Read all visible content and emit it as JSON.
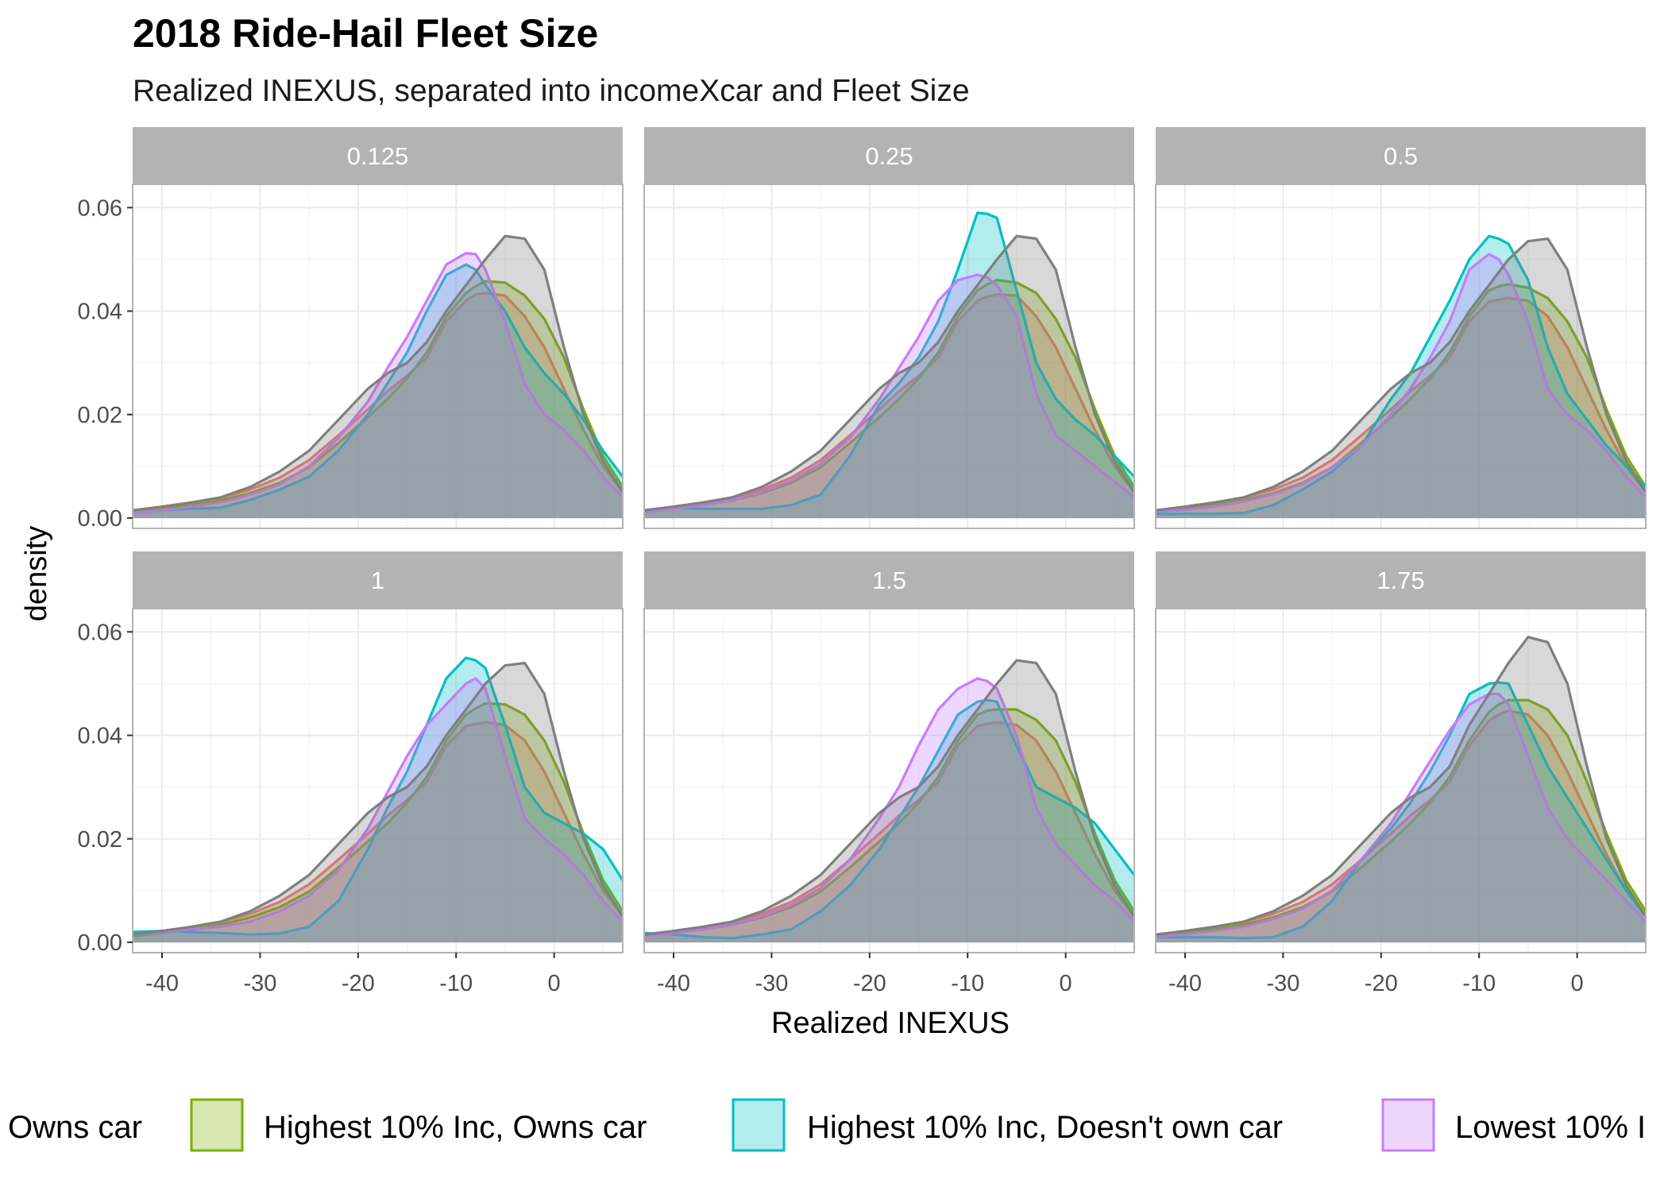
{
  "chart_data": {
    "type": "area",
    "title": "2018 Ride-Hail Fleet Size",
    "subtitle": "Realized INEXUS, separated into incomeXcar and Fleet Size",
    "xlabel": "Realized INEXUS",
    "ylabel": "density",
    "xlim": [
      -43,
      7
    ],
    "ylim": [
      -0.002,
      0.0645
    ],
    "x_ticks": [
      -40,
      -30,
      -20,
      -10,
      0
    ],
    "x_tick_labels": [
      "-40",
      "-30",
      "-20",
      "-10",
      "0"
    ],
    "y_ticks": [
      0.0,
      0.02,
      0.04,
      0.06
    ],
    "y_tick_labels": [
      "0.00",
      "0.02",
      "0.04",
      "0.06"
    ],
    "grid": true,
    "legend_position": "bottom",
    "legend_visible_labels": [
      "Owns car",
      "Highest 10% Inc, Owns car",
      "Highest 10% Inc, Doesn't own car",
      "Lowest 10% I"
    ],
    "x": [
      -43,
      -40,
      -37,
      -34,
      -31,
      -28,
      -25,
      -22,
      -19,
      -17,
      -15,
      -13,
      -11,
      -9,
      -8,
      -7,
      -5,
      -3,
      -1,
      1,
      3,
      5,
      7
    ],
    "series": [
      {
        "name": "Owns car",
        "color": "#f8766d",
        "panels": [
          [
            0.0013,
            0.0022,
            0.003,
            0.0039,
            0.0055,
            0.0078,
            0.0112,
            0.016,
            0.021,
            0.0245,
            0.0275,
            0.031,
            0.038,
            0.042,
            0.0432,
            0.0435,
            0.043,
            0.039,
            0.033,
            0.025,
            0.017,
            0.01,
            0.005
          ],
          [
            0.0013,
            0.0022,
            0.003,
            0.0039,
            0.0055,
            0.0078,
            0.0112,
            0.016,
            0.021,
            0.0245,
            0.0275,
            0.031,
            0.038,
            0.042,
            0.0428,
            0.0432,
            0.043,
            0.039,
            0.033,
            0.025,
            0.017,
            0.01,
            0.005
          ],
          [
            0.0013,
            0.0022,
            0.003,
            0.0039,
            0.0055,
            0.0078,
            0.0112,
            0.016,
            0.021,
            0.0245,
            0.0275,
            0.031,
            0.038,
            0.0418,
            0.0422,
            0.0425,
            0.042,
            0.039,
            0.033,
            0.025,
            0.017,
            0.01,
            0.005
          ],
          [
            0.0013,
            0.0022,
            0.003,
            0.0039,
            0.0055,
            0.0078,
            0.0112,
            0.016,
            0.021,
            0.0245,
            0.0275,
            0.031,
            0.038,
            0.0418,
            0.0422,
            0.0425,
            0.042,
            0.039,
            0.033,
            0.025,
            0.017,
            0.01,
            0.005
          ],
          [
            0.0013,
            0.0022,
            0.003,
            0.0039,
            0.0055,
            0.0078,
            0.0112,
            0.016,
            0.021,
            0.0245,
            0.0275,
            0.031,
            0.038,
            0.0418,
            0.0422,
            0.0425,
            0.042,
            0.039,
            0.033,
            0.025,
            0.017,
            0.01,
            0.005
          ],
          [
            0.0013,
            0.0022,
            0.003,
            0.0039,
            0.0055,
            0.0078,
            0.0112,
            0.016,
            0.021,
            0.0245,
            0.0275,
            0.031,
            0.038,
            0.0428,
            0.044,
            0.0448,
            0.044,
            0.04,
            0.033,
            0.025,
            0.017,
            0.01,
            0.005
          ]
        ]
      },
      {
        "name": "Highest 10% Inc, Owns car",
        "color": "#7cae00",
        "panels": [
          [
            0.0012,
            0.0018,
            0.0025,
            0.0034,
            0.0048,
            0.0068,
            0.0098,
            0.0145,
            0.0195,
            0.023,
            0.027,
            0.032,
            0.039,
            0.0435,
            0.0448,
            0.0458,
            0.0455,
            0.043,
            0.0385,
            0.031,
            0.021,
            0.012,
            0.006
          ],
          [
            0.0012,
            0.0018,
            0.0025,
            0.0034,
            0.0048,
            0.0068,
            0.0098,
            0.0145,
            0.0195,
            0.023,
            0.027,
            0.032,
            0.039,
            0.044,
            0.0452,
            0.046,
            0.0455,
            0.0435,
            0.0385,
            0.031,
            0.021,
            0.012,
            0.006
          ],
          [
            0.0012,
            0.0018,
            0.0025,
            0.0034,
            0.0048,
            0.0068,
            0.0098,
            0.0145,
            0.0195,
            0.023,
            0.027,
            0.032,
            0.039,
            0.044,
            0.0448,
            0.0452,
            0.0445,
            0.0425,
            0.038,
            0.031,
            0.021,
            0.012,
            0.006
          ],
          [
            0.0012,
            0.0018,
            0.0025,
            0.0034,
            0.0048,
            0.0068,
            0.0098,
            0.0145,
            0.0195,
            0.023,
            0.027,
            0.032,
            0.039,
            0.044,
            0.0452,
            0.0462,
            0.046,
            0.044,
            0.039,
            0.031,
            0.021,
            0.012,
            0.006
          ],
          [
            0.0012,
            0.0018,
            0.0025,
            0.0034,
            0.0048,
            0.0068,
            0.0098,
            0.0145,
            0.0195,
            0.023,
            0.027,
            0.032,
            0.039,
            0.044,
            0.0448,
            0.045,
            0.045,
            0.043,
            0.039,
            0.031,
            0.021,
            0.012,
            0.006
          ],
          [
            0.0012,
            0.0018,
            0.0025,
            0.0034,
            0.0048,
            0.0068,
            0.0098,
            0.0145,
            0.0195,
            0.023,
            0.027,
            0.032,
            0.039,
            0.0445,
            0.046,
            0.0468,
            0.0468,
            0.045,
            0.04,
            0.031,
            0.021,
            0.012,
            0.006
          ]
        ]
      },
      {
        "name": "Highest 10% Inc, Doesn't own car",
        "color": "#00bfc4",
        "panels": [
          [
            0.001,
            0.0015,
            0.0018,
            0.002,
            0.0035,
            0.0055,
            0.008,
            0.013,
            0.02,
            0.026,
            0.032,
            0.04,
            0.047,
            0.049,
            0.048,
            0.045,
            0.04,
            0.033,
            0.028,
            0.024,
            0.019,
            0.013,
            0.008
          ],
          [
            0.0015,
            0.002,
            0.0018,
            0.0018,
            0.0018,
            0.0025,
            0.0045,
            0.012,
            0.022,
            0.026,
            0.031,
            0.038,
            0.048,
            0.059,
            0.0588,
            0.058,
            0.044,
            0.03,
            0.023,
            0.019,
            0.016,
            0.012,
            0.008
          ],
          [
            0.0008,
            0.0008,
            0.0008,
            0.001,
            0.0025,
            0.0055,
            0.009,
            0.014,
            0.023,
            0.028,
            0.035,
            0.042,
            0.05,
            0.0545,
            0.054,
            0.053,
            0.046,
            0.033,
            0.024,
            0.019,
            0.014,
            0.01,
            0.006
          ],
          [
            0.002,
            0.0022,
            0.002,
            0.0018,
            0.0015,
            0.0017,
            0.003,
            0.008,
            0.018,
            0.026,
            0.033,
            0.042,
            0.051,
            0.055,
            0.0545,
            0.053,
            0.042,
            0.03,
            0.025,
            0.023,
            0.021,
            0.018,
            0.012
          ],
          [
            0.0018,
            0.0015,
            0.001,
            0.0008,
            0.0015,
            0.0025,
            0.006,
            0.011,
            0.018,
            0.024,
            0.03,
            0.037,
            0.044,
            0.0465,
            0.0468,
            0.0465,
            0.038,
            0.03,
            0.028,
            0.026,
            0.023,
            0.018,
            0.013
          ],
          [
            0.001,
            0.001,
            0.001,
            0.0008,
            0.001,
            0.003,
            0.008,
            0.016,
            0.022,
            0.027,
            0.033,
            0.04,
            0.048,
            0.05,
            0.0502,
            0.05,
            0.042,
            0.034,
            0.028,
            0.022,
            0.016,
            0.01,
            0.005
          ]
        ]
      },
      {
        "name": "Lowest 10% I",
        "color": "#c77cff",
        "panels": [
          [
            0.001,
            0.0015,
            0.0022,
            0.003,
            0.0045,
            0.0065,
            0.01,
            0.0155,
            0.0225,
            0.029,
            0.035,
            0.042,
            0.049,
            0.0512,
            0.051,
            0.048,
            0.038,
            0.026,
            0.02,
            0.017,
            0.013,
            0.008,
            0.004
          ],
          [
            0.0012,
            0.0018,
            0.0025,
            0.0035,
            0.005,
            0.0072,
            0.0105,
            0.0155,
            0.023,
            0.029,
            0.035,
            0.042,
            0.046,
            0.047,
            0.0465,
            0.045,
            0.039,
            0.024,
            0.016,
            0.013,
            0.01,
            0.007,
            0.004
          ],
          [
            0.0012,
            0.0016,
            0.0022,
            0.0032,
            0.0046,
            0.0066,
            0.0098,
            0.014,
            0.02,
            0.025,
            0.031,
            0.038,
            0.048,
            0.051,
            0.05,
            0.047,
            0.038,
            0.025,
            0.02,
            0.017,
            0.013,
            0.008,
            0.004
          ],
          [
            0.0015,
            0.002,
            0.0025,
            0.003,
            0.004,
            0.006,
            0.009,
            0.014,
            0.022,
            0.029,
            0.036,
            0.042,
            0.046,
            0.05,
            0.051,
            0.049,
            0.036,
            0.024,
            0.02,
            0.017,
            0.013,
            0.008,
            0.004
          ],
          [
            0.0012,
            0.0018,
            0.0025,
            0.0035,
            0.005,
            0.0072,
            0.0105,
            0.016,
            0.024,
            0.03,
            0.038,
            0.045,
            0.049,
            0.051,
            0.0505,
            0.049,
            0.04,
            0.026,
            0.019,
            0.015,
            0.011,
            0.008,
            0.004
          ],
          [
            0.001,
            0.0015,
            0.0022,
            0.003,
            0.0045,
            0.0065,
            0.01,
            0.016,
            0.023,
            0.029,
            0.035,
            0.041,
            0.046,
            0.048,
            0.048,
            0.046,
            0.036,
            0.026,
            0.02,
            0.016,
            0.012,
            0.008,
            0.004
          ]
        ]
      },
      {
        "name": "",
        "color": "#7f7f7f",
        "panels": [
          [
            0.0015,
            0.0022,
            0.003,
            0.004,
            0.006,
            0.009,
            0.013,
            0.019,
            0.025,
            0.028,
            0.03,
            0.034,
            0.04,
            0.045,
            0.0475,
            0.05,
            0.0545,
            0.054,
            0.048,
            0.033,
            0.02,
            0.011,
            0.005
          ],
          [
            0.0015,
            0.0022,
            0.003,
            0.004,
            0.006,
            0.009,
            0.013,
            0.019,
            0.025,
            0.028,
            0.03,
            0.034,
            0.04,
            0.045,
            0.0475,
            0.05,
            0.0545,
            0.054,
            0.048,
            0.033,
            0.02,
            0.011,
            0.005
          ],
          [
            0.0015,
            0.0022,
            0.003,
            0.004,
            0.006,
            0.009,
            0.013,
            0.019,
            0.025,
            0.028,
            0.03,
            0.034,
            0.04,
            0.045,
            0.0475,
            0.05,
            0.0535,
            0.054,
            0.048,
            0.033,
            0.02,
            0.011,
            0.005
          ],
          [
            0.0015,
            0.0022,
            0.003,
            0.004,
            0.006,
            0.009,
            0.013,
            0.019,
            0.025,
            0.028,
            0.03,
            0.034,
            0.04,
            0.045,
            0.0475,
            0.05,
            0.0535,
            0.054,
            0.048,
            0.033,
            0.02,
            0.011,
            0.005
          ],
          [
            0.0015,
            0.0022,
            0.003,
            0.004,
            0.006,
            0.009,
            0.013,
            0.019,
            0.025,
            0.028,
            0.03,
            0.034,
            0.04,
            0.045,
            0.0475,
            0.05,
            0.0545,
            0.054,
            0.048,
            0.033,
            0.02,
            0.011,
            0.005
          ],
          [
            0.0015,
            0.0022,
            0.003,
            0.004,
            0.006,
            0.009,
            0.013,
            0.019,
            0.025,
            0.028,
            0.03,
            0.034,
            0.042,
            0.048,
            0.051,
            0.054,
            0.059,
            0.058,
            0.05,
            0.034,
            0.02,
            0.011,
            0.005
          ]
        ]
      }
    ],
    "panels": [
      "0.125",
      "0.25",
      "0.5",
      "1",
      "1.5",
      "1.75"
    ]
  },
  "style": {
    "strip_fill": "#b3b3b3",
    "strip_text": "#ffffff",
    "grid_major": "#ebebeb",
    "grid_minor": "#f5f5f5",
    "panel_border": "#b3b3b3",
    "fill_opacity": 0.3
  }
}
